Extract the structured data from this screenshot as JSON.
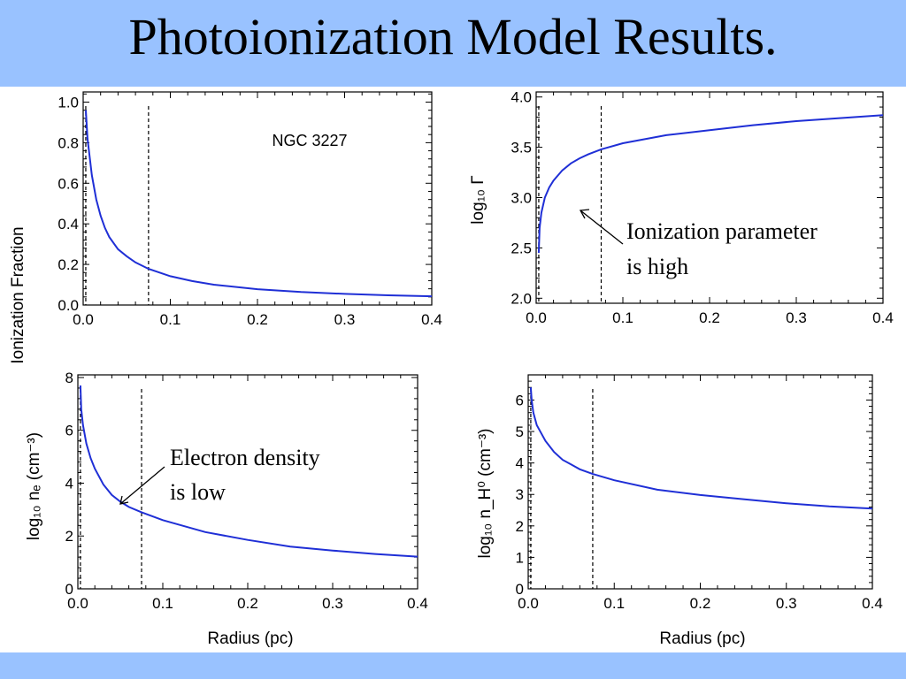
{
  "slide": {
    "title": "Photoionization Model Results.",
    "colors": {
      "banner": "#99c2ff",
      "curve": "#1f2fd6",
      "background": "#ffffff"
    }
  },
  "chart_data": [
    {
      "type": "line",
      "id": "ionfrac",
      "ylabel": "Ionization Fraction",
      "xlim": [
        0,
        0.4
      ],
      "ylim": [
        0,
        1.05
      ],
      "xticks": [
        0.0,
        0.1,
        0.2,
        0.3,
        0.4
      ],
      "xticklabels": [
        "0.0",
        "0.1",
        "0.2",
        "0.3",
        "0.4"
      ],
      "yticks": [
        0.0,
        0.2,
        0.4,
        0.6,
        0.8,
        1.0
      ],
      "yticklabels": [
        "0.0",
        "0.2",
        "0.4",
        "0.6",
        "0.8",
        "1.0"
      ],
      "vlines": [
        0.003,
        0.075
      ],
      "annotation": "NGC 3227",
      "series": [
        {
          "x": [
            0.003,
            0.005,
            0.01,
            0.015,
            0.02,
            0.025,
            0.03,
            0.04,
            0.05,
            0.06,
            0.075,
            0.1,
            0.125,
            0.15,
            0.2,
            0.25,
            0.3,
            0.35,
            0.4
          ],
          "values": [
            0.96,
            0.82,
            0.64,
            0.52,
            0.44,
            0.38,
            0.335,
            0.275,
            0.24,
            0.21,
            0.178,
            0.142,
            0.118,
            0.1,
            0.078,
            0.064,
            0.055,
            0.048,
            0.043
          ]
        }
      ]
    },
    {
      "type": "line",
      "id": "logGamma",
      "ylabel": "log₁₀ Γ",
      "xlim": [
        0,
        0.4
      ],
      "ylim": [
        1.95,
        4.05
      ],
      "xticks": [
        0.0,
        0.1,
        0.2,
        0.3,
        0.4
      ],
      "xticklabels": [
        "0.0",
        "0.1",
        "0.2",
        "0.3",
        "0.4"
      ],
      "yticks": [
        2.0,
        2.5,
        3.0,
        3.5,
        4.0
      ],
      "yticklabels": [
        "2.0",
        "2.5",
        "3.0",
        "3.5",
        "4.0"
      ],
      "vlines": [
        0.003,
        0.075
      ],
      "annotation": [
        "Ionization parameter",
        "is high"
      ],
      "series": [
        {
          "x": [
            0.003,
            0.004,
            0.006,
            0.01,
            0.015,
            0.02,
            0.03,
            0.04,
            0.05,
            0.06,
            0.075,
            0.1,
            0.15,
            0.2,
            0.25,
            0.3,
            0.35,
            0.4
          ],
          "values": [
            2.45,
            2.7,
            2.85,
            3.0,
            3.1,
            3.17,
            3.27,
            3.34,
            3.39,
            3.43,
            3.48,
            3.54,
            3.62,
            3.67,
            3.72,
            3.76,
            3.79,
            3.82
          ]
        }
      ]
    },
    {
      "type": "line",
      "id": "logNe",
      "ylabel": "log₁₀ nₑ (cm⁻³)",
      "xlabel": "Radius (pc)",
      "xlim": [
        0,
        0.4
      ],
      "ylim": [
        0,
        8.1
      ],
      "xticks": [
        0.0,
        0.1,
        0.2,
        0.3,
        0.4
      ],
      "xticklabels": [
        "0.0",
        "0.1",
        "0.2",
        "0.3",
        "0.4"
      ],
      "yticks": [
        0,
        2,
        4,
        6,
        8
      ],
      "yticklabels": [
        "0",
        "2",
        "4",
        "6",
        "8"
      ],
      "vlines": [
        0.003,
        0.075
      ],
      "annotation": [
        "Electron density",
        "is low"
      ],
      "series": [
        {
          "x": [
            0.003,
            0.004,
            0.006,
            0.01,
            0.015,
            0.02,
            0.03,
            0.04,
            0.05,
            0.06,
            0.075,
            0.1,
            0.15,
            0.2,
            0.25,
            0.3,
            0.35,
            0.4
          ],
          "values": [
            7.7,
            6.8,
            6.2,
            5.5,
            4.95,
            4.55,
            3.95,
            3.55,
            3.3,
            3.1,
            2.9,
            2.6,
            2.15,
            1.85,
            1.6,
            1.45,
            1.32,
            1.22
          ]
        }
      ]
    },
    {
      "type": "line",
      "id": "logNH0",
      "ylabel": "log₁₀ n_H⁰ (cm⁻³)",
      "xlabel": "Radius (pc)",
      "xlim": [
        0,
        0.4
      ],
      "ylim": [
        0,
        6.8
      ],
      "xticks": [
        0.0,
        0.1,
        0.2,
        0.3,
        0.4
      ],
      "xticklabels": [
        "0.0",
        "0.1",
        "0.2",
        "0.3",
        "0.4"
      ],
      "yticks": [
        0,
        1,
        2,
        3,
        4,
        5,
        6
      ],
      "yticklabels": [
        "0",
        "1",
        "2",
        "3",
        "4",
        "5",
        "6"
      ],
      "vlines": [
        0.003,
        0.075
      ],
      "series": [
        {
          "x": [
            0.003,
            0.004,
            0.006,
            0.01,
            0.015,
            0.02,
            0.03,
            0.04,
            0.05,
            0.06,
            0.075,
            0.1,
            0.15,
            0.2,
            0.25,
            0.3,
            0.35,
            0.4
          ],
          "values": [
            6.4,
            6.0,
            5.6,
            5.2,
            4.95,
            4.7,
            4.35,
            4.1,
            3.95,
            3.8,
            3.65,
            3.45,
            3.15,
            2.98,
            2.85,
            2.72,
            2.62,
            2.55
          ]
        }
      ]
    }
  ]
}
